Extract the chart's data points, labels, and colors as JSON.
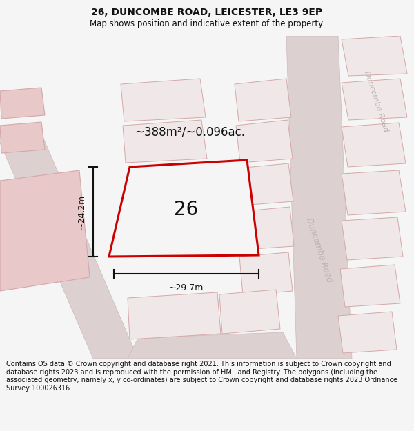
{
  "title": "26, DUNCOMBE ROAD, LEICESTER, LE3 9EP",
  "subtitle": "Map shows position and indicative extent of the property.",
  "footer": "Contains OS data © Crown copyright and database right 2021. This information is subject to Crown copyright and database rights 2023 and is reproduced with the permission of HM Land Registry. The polygons (including the associated geometry, namely x, y co-ordinates) are subject to Crown copyright and database rights 2023 Ordnance Survey 100026316.",
  "title_bg": "#f5f5f5",
  "footer_bg": "#f5f5f5",
  "map_bg": "#e8e3e3",
  "plot_fill": "#f5f5f5",
  "plot_outline": "#cc0000",
  "plot_label": "26",
  "area_label": "~388m²/~0.096ac.",
  "width_label": "~29.7m",
  "height_label": "~24.2m",
  "title_fontsize": 10,
  "subtitle_fontsize": 8.5,
  "footer_fontsize": 7.0,
  "road_label_color": "#c0b0b0",
  "dim_color": "#111111",
  "building_fill_light": "#f0e8e8",
  "building_fill_pink": "#e8c8c8",
  "building_outline": "#d4a8a8",
  "road_fill": "#ddd0d0",
  "road_outline": "#cbbaba"
}
